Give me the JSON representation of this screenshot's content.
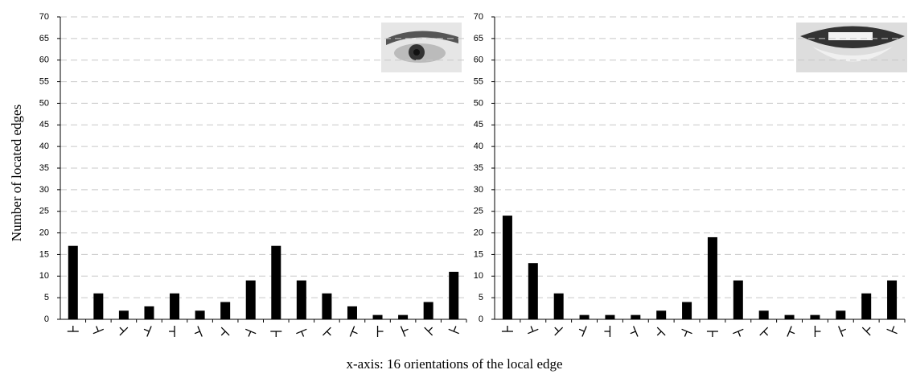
{
  "figure": {
    "xlabel": "x-axis: 16 orientations of the local edge",
    "ylabel": "Number of located edges"
  },
  "chart_data": [
    {
      "type": "bar",
      "color": "#000000",
      "categories": [
        null,
        null,
        null,
        null,
        null,
        null,
        null,
        null,
        null,
        null,
        null,
        null,
        null,
        null,
        null,
        null
      ],
      "values": [
        17,
        6,
        2,
        3,
        6,
        2,
        4,
        9,
        17,
        9,
        6,
        3,
        1,
        1,
        4,
        11
      ],
      "ylim": [
        0,
        70
      ],
      "yticks": [
        0,
        5,
        10,
        15,
        20,
        25,
        30,
        35,
        40,
        45,
        50,
        55,
        60,
        65,
        70
      ],
      "grid": true
    },
    {
      "type": "bar",
      "color": "#000000",
      "categories": [
        null,
        null,
        null,
        null,
        null,
        null,
        null,
        null,
        null,
        null,
        null,
        null,
        null,
        null,
        null,
        null
      ],
      "values": [
        24,
        13,
        6,
        1,
        1,
        1,
        2,
        4,
        19,
        9,
        2,
        1,
        1,
        2,
        6,
        9
      ],
      "ylim": [
        0,
        70
      ],
      "yticks": [
        0,
        5,
        10,
        15,
        20,
        25,
        30,
        35,
        40,
        45,
        50,
        55,
        60,
        65,
        70
      ],
      "grid": true
    }
  ]
}
